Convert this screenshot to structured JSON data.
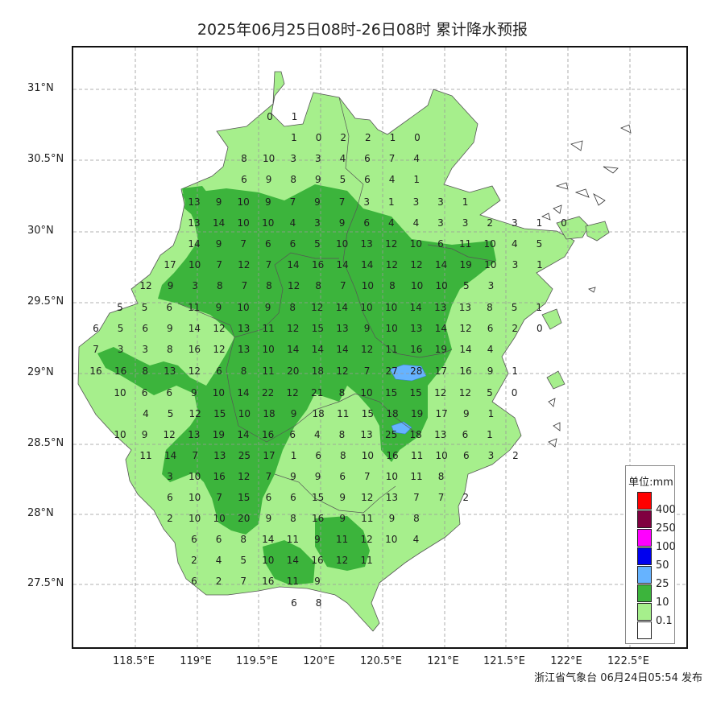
{
  "title": "2025年06月25日08时-26日08时 累计降水预报",
  "issuer": "浙江省气象台 06月24日05:54 发布",
  "lat_ticks": [
    "31°N",
    "30.5°N",
    "30°N",
    "29.5°N",
    "29°N",
    "28.5°N",
    "28°N",
    "27.5°N"
  ],
  "lon_ticks": [
    "118.5°E",
    "119°E",
    "119.5°E",
    "120°E",
    "120.5°E",
    "121°E",
    "121.5°E",
    "122°E",
    "122.5°E"
  ],
  "legend": {
    "title": "单位:mm",
    "items": [
      {
        "label": "400",
        "color": "#ff0000"
      },
      {
        "label": "250",
        "color": "#800040"
      },
      {
        "label": "100",
        "color": "#ff00ff"
      },
      {
        "label": "50",
        "color": "#0000ee"
      },
      {
        "label": "25",
        "color": "#66b3ff"
      },
      {
        "label": "10",
        "color": "#3cb43c"
      },
      {
        "label": "0.1",
        "color": "#a6ef8c"
      },
      {
        "label": "",
        "color": "#ffffff"
      }
    ]
  },
  "colors": {
    "light": "#a6ef8c",
    "mid": "#3cb43c",
    "blue": "#66b3ff"
  },
  "station_rows": [
    [
      "0",
      "1"
    ],
    [
      "1",
      "0",
      "2",
      "2",
      "1",
      "0"
    ],
    [
      "8",
      "10",
      "3",
      "3",
      "4",
      "6",
      "7",
      "4"
    ],
    [
      "6",
      "9",
      "8",
      "9",
      "5",
      "6",
      "4",
      "1"
    ],
    [
      "13",
      "9",
      "10",
      "9",
      "7",
      "9",
      "7",
      "3",
      "1",
      "3",
      "3",
      "1"
    ],
    [
      "13",
      "14",
      "10",
      "10",
      "4",
      "3",
      "9",
      "6",
      "4",
      "4",
      "3",
      "3",
      "2",
      "3",
      "1",
      "0"
    ],
    [
      "14",
      "9",
      "7",
      "6",
      "6",
      "5",
      "10",
      "13",
      "12",
      "10",
      "6",
      "11",
      "10",
      "4",
      "5"
    ],
    [
      "17",
      "10",
      "7",
      "12",
      "7",
      "14",
      "16",
      "14",
      "14",
      "12",
      "12",
      "14",
      "19",
      "10",
      "3",
      "1"
    ],
    [
      "12",
      "9",
      "3",
      "8",
      "7",
      "8",
      "12",
      "8",
      "7",
      "10",
      "8",
      "10",
      "10",
      "5",
      "3"
    ],
    [
      "5",
      "5",
      "6",
      "11",
      "9",
      "10",
      "9",
      "8",
      "12",
      "14",
      "10",
      "10",
      "14",
      "13",
      "13",
      "8",
      "5",
      "1"
    ],
    [
      "6",
      "5",
      "6",
      "9",
      "14",
      "12",
      "13",
      "11",
      "12",
      "15",
      "13",
      "9",
      "10",
      "13",
      "14",
      "12",
      "6",
      "2",
      "0"
    ],
    [
      "7",
      "3",
      "3",
      "8",
      "16",
      "12",
      "13",
      "10",
      "14",
      "14",
      "14",
      "12",
      "11",
      "16",
      "19",
      "14",
      "4"
    ],
    [
      "16",
      "16",
      "8",
      "13",
      "12",
      "6",
      "8",
      "11",
      "20",
      "18",
      "12",
      "7",
      "27",
      "28",
      "17",
      "16",
      "9",
      "1"
    ],
    [
      "10",
      "6",
      "6",
      "9",
      "10",
      "14",
      "22",
      "12",
      "21",
      "8",
      "10",
      "15",
      "15",
      "12",
      "12",
      "5",
      "0"
    ],
    [
      "4",
      "5",
      "12",
      "15",
      "10",
      "18",
      "9",
      "18",
      "11",
      "15",
      "18",
      "19",
      "17",
      "9",
      "1"
    ],
    [
      "10",
      "9",
      "12",
      "13",
      "19",
      "14",
      "16",
      "6",
      "4",
      "8",
      "13",
      "25",
      "18",
      "13",
      "6",
      "1"
    ],
    [
      "11",
      "14",
      "7",
      "13",
      "25",
      "17",
      "1",
      "6",
      "8",
      "10",
      "16",
      "11",
      "10",
      "6",
      "3",
      "2"
    ],
    [
      "3",
      "10",
      "16",
      "12",
      "7",
      "9",
      "9",
      "6",
      "7",
      "10",
      "11",
      "8"
    ],
    [
      "6",
      "10",
      "7",
      "15",
      "6",
      "6",
      "15",
      "9",
      "12",
      "13",
      "7",
      "7",
      "2"
    ],
    [
      "2",
      "10",
      "10",
      "20",
      "9",
      "8",
      "16",
      "9",
      "11",
      "9",
      "8"
    ],
    [
      "6",
      "6",
      "8",
      "14",
      "11",
      "9",
      "11",
      "12",
      "10",
      "4"
    ],
    [
      "2",
      "4",
      "5",
      "10",
      "14",
      "16",
      "12",
      "11"
    ],
    [
      "6",
      "2",
      "7",
      "16",
      "11",
      "9"
    ],
    [
      "6",
      "8"
    ]
  ]
}
